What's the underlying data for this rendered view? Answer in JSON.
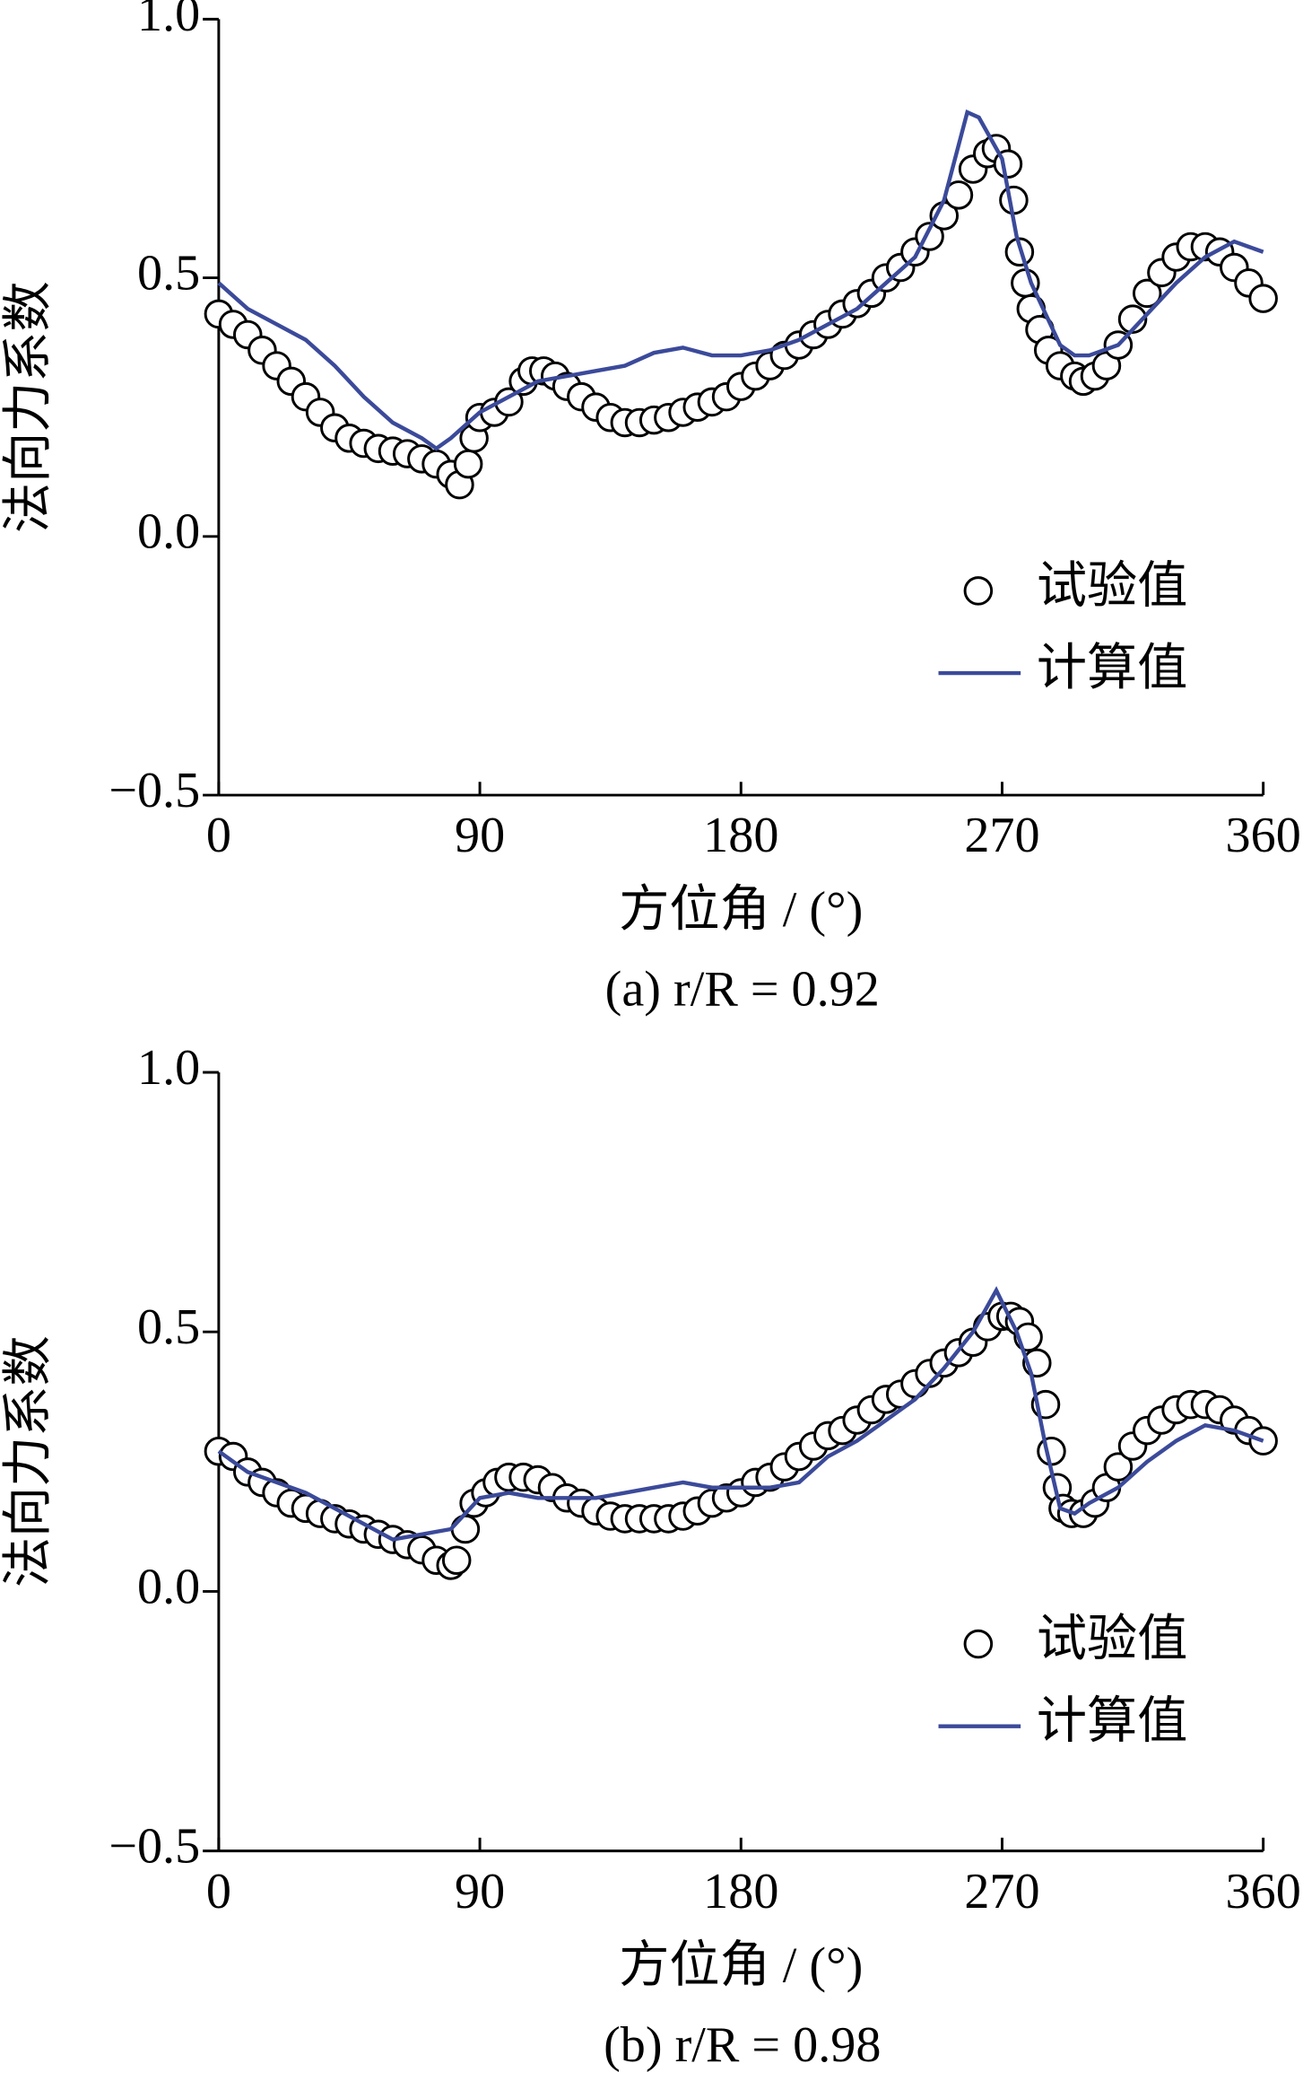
{
  "chart_data": [
    {
      "type": "line",
      "caption": "(a)  r/R = 0.92",
      "x_label": "方位角 / (°)",
      "y_label": "法向力系数",
      "xlim": [
        0,
        360
      ],
      "xticks": [
        0,
        90,
        180,
        270,
        360
      ],
      "ylim": [
        -0.5,
        1.0
      ],
      "yticks": [
        {
          "value": -0.5,
          "label": "−0.5"
        },
        {
          "value": 0,
          "label": "0.0"
        },
        0.5,
        {
          "value": 1.0,
          "label": "1.0"
        }
      ],
      "legend": "right",
      "series": [
        {
          "name": "试验值",
          "style": "marker",
          "color": "#000000",
          "x": [
            0,
            5,
            10,
            15,
            20,
            25,
            30,
            35,
            40,
            45,
            50,
            55,
            60,
            65,
            70,
            75,
            80,
            83,
            86,
            88,
            90,
            95,
            100,
            105,
            108,
            112,
            116,
            120,
            125,
            130,
            135,
            140,
            145,
            150,
            155,
            160,
            165,
            170,
            175,
            180,
            185,
            190,
            195,
            200,
            205,
            210,
            215,
            220,
            225,
            230,
            235,
            240,
            245,
            250,
            255,
            260,
            265,
            268,
            272,
            274,
            276,
            278,
            280,
            283,
            286,
            290,
            295,
            298,
            302,
            306,
            310,
            315,
            320,
            325,
            330,
            335,
            340,
            345,
            350,
            355,
            360
          ],
          "values": [
            0.43,
            0.41,
            0.39,
            0.36,
            0.33,
            0.3,
            0.27,
            0.24,
            0.21,
            0.19,
            0.18,
            0.17,
            0.165,
            0.16,
            0.15,
            0.14,
            0.12,
            0.1,
            0.14,
            0.19,
            0.23,
            0.24,
            0.26,
            0.3,
            0.32,
            0.32,
            0.31,
            0.29,
            0.27,
            0.25,
            0.23,
            0.22,
            0.22,
            0.225,
            0.23,
            0.24,
            0.25,
            0.26,
            0.27,
            0.29,
            0.31,
            0.33,
            0.35,
            0.37,
            0.39,
            0.41,
            0.43,
            0.45,
            0.47,
            0.5,
            0.52,
            0.55,
            0.58,
            0.62,
            0.66,
            0.71,
            0.74,
            0.75,
            0.72,
            0.65,
            0.55,
            0.49,
            0.44,
            0.4,
            0.36,
            0.33,
            0.31,
            0.3,
            0.31,
            0.33,
            0.37,
            0.42,
            0.47,
            0.51,
            0.54,
            0.56,
            0.56,
            0.55,
            0.52,
            0.49,
            0.46
          ]
        },
        {
          "name": "计算值",
          "style": "line",
          "color": "#3b4a9a",
          "x": [
            0,
            10,
            20,
            30,
            40,
            50,
            60,
            70,
            75,
            80,
            90,
            100,
            110,
            120,
            130,
            140,
            150,
            160,
            170,
            180,
            190,
            200,
            210,
            220,
            230,
            240,
            250,
            258,
            262,
            270,
            275,
            280,
            290,
            295,
            300,
            310,
            320,
            330,
            340,
            350,
            355,
            360
          ],
          "values": [
            0.49,
            0.44,
            0.41,
            0.38,
            0.33,
            0.27,
            0.22,
            0.19,
            0.17,
            0.19,
            0.24,
            0.27,
            0.3,
            0.31,
            0.32,
            0.33,
            0.355,
            0.365,
            0.35,
            0.35,
            0.36,
            0.38,
            0.41,
            0.44,
            0.49,
            0.54,
            0.65,
            0.82,
            0.81,
            0.73,
            0.58,
            0.49,
            0.37,
            0.35,
            0.35,
            0.37,
            0.43,
            0.49,
            0.54,
            0.57,
            0.56,
            0.55
          ]
        }
      ]
    },
    {
      "type": "line",
      "caption": "(b)  r/R = 0.98",
      "x_label": "方位角 / (°)",
      "y_label": "法向力系数",
      "xlim": [
        0,
        360
      ],
      "xticks": [
        0,
        90,
        180,
        270,
        360
      ],
      "ylim": [
        -0.5,
        1.0
      ],
      "yticks": [
        {
          "value": -0.5,
          "label": "−0.5"
        },
        {
          "value": 0,
          "label": "0.0"
        },
        0.5,
        {
          "value": 1.0,
          "label": "1.0"
        }
      ],
      "legend": "right",
      "series": [
        {
          "name": "试验值",
          "style": "marker",
          "color": "#000000",
          "x": [
            0,
            5,
            10,
            15,
            20,
            25,
            30,
            35,
            40,
            45,
            50,
            55,
            60,
            65,
            70,
            75,
            80,
            82,
            85,
            88,
            92,
            96,
            100,
            105,
            110,
            115,
            120,
            125,
            130,
            135,
            140,
            145,
            150,
            155,
            160,
            165,
            170,
            175,
            180,
            185,
            190,
            195,
            200,
            205,
            210,
            215,
            220,
            225,
            230,
            235,
            240,
            245,
            250,
            255,
            260,
            265,
            270,
            273,
            276,
            279,
            282,
            285,
            287,
            289,
            291,
            294,
            298,
            302,
            306,
            310,
            315,
            320,
            325,
            330,
            335,
            340,
            345,
            350,
            355,
            360
          ],
          "values": [
            0.27,
            0.26,
            0.23,
            0.21,
            0.19,
            0.17,
            0.16,
            0.15,
            0.14,
            0.13,
            0.12,
            0.11,
            0.1,
            0.09,
            0.08,
            0.06,
            0.05,
            0.06,
            0.12,
            0.17,
            0.19,
            0.21,
            0.22,
            0.22,
            0.215,
            0.2,
            0.18,
            0.17,
            0.155,
            0.145,
            0.14,
            0.14,
            0.14,
            0.14,
            0.145,
            0.155,
            0.17,
            0.18,
            0.19,
            0.21,
            0.22,
            0.24,
            0.26,
            0.28,
            0.3,
            0.31,
            0.33,
            0.35,
            0.37,
            0.38,
            0.4,
            0.42,
            0.44,
            0.46,
            0.48,
            0.51,
            0.53,
            0.53,
            0.52,
            0.49,
            0.44,
            0.36,
            0.27,
            0.2,
            0.16,
            0.15,
            0.15,
            0.17,
            0.2,
            0.24,
            0.28,
            0.31,
            0.33,
            0.35,
            0.36,
            0.36,
            0.35,
            0.33,
            0.31,
            0.29
          ]
        },
        {
          "name": "计算值",
          "style": "line",
          "color": "#3b4a9a",
          "x": [
            0,
            10,
            20,
            30,
            40,
            50,
            60,
            70,
            80,
            90,
            100,
            110,
            120,
            130,
            140,
            150,
            160,
            170,
            180,
            190,
            200,
            210,
            220,
            230,
            240,
            250,
            260,
            268,
            275,
            280,
            285,
            290,
            295,
            300,
            310,
            320,
            330,
            340,
            350,
            360
          ],
          "values": [
            0.27,
            0.23,
            0.21,
            0.19,
            0.16,
            0.13,
            0.1,
            0.11,
            0.12,
            0.18,
            0.19,
            0.18,
            0.18,
            0.18,
            0.19,
            0.2,
            0.21,
            0.2,
            0.2,
            0.2,
            0.21,
            0.26,
            0.29,
            0.33,
            0.37,
            0.43,
            0.5,
            0.58,
            0.5,
            0.42,
            0.28,
            0.16,
            0.15,
            0.17,
            0.2,
            0.25,
            0.29,
            0.32,
            0.31,
            0.29
          ]
        }
      ]
    }
  ]
}
